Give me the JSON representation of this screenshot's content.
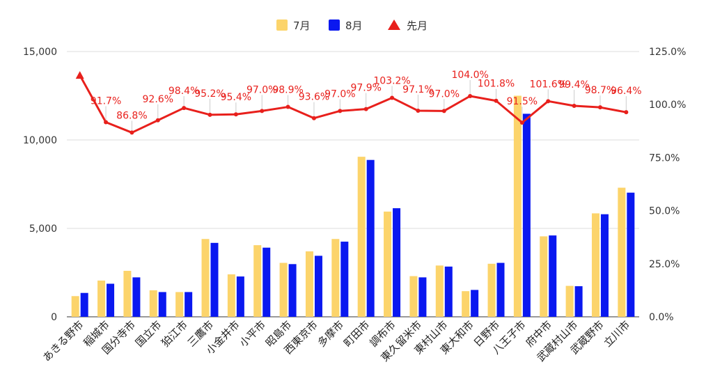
{
  "chart_data": {
    "type": "bar",
    "categories": [
      "あきる野市",
      "稲城市",
      "国分寺市",
      "国立市",
      "狛江市",
      "三鷹市",
      "小金井市",
      "小平市",
      "昭島市",
      "西東京市",
      "多摩市",
      "町田市",
      "調布市",
      "東久留米市",
      "東村山市",
      "東大和市",
      "日野市",
      "八王子市",
      "府中市",
      "武蔵村山市",
      "武蔵野市",
      "立川市"
    ],
    "series": [
      {
        "name": "7月",
        "type": "bar",
        "axis": "left",
        "color": "#fcd46b",
        "values": [
          1170,
          2050,
          2600,
          1500,
          1400,
          4400,
          2400,
          4050,
          3050,
          3700,
          4400,
          9050,
          5950,
          2300,
          2900,
          1450,
          3000,
          12500,
          4550,
          1750,
          5850,
          7300
        ]
      },
      {
        "name": "8月",
        "type": "bar",
        "axis": "left",
        "color": "#0a18f0",
        "values": [
          1350,
          1870,
          2230,
          1400,
          1400,
          4180,
          2280,
          3910,
          2980,
          3450,
          4250,
          8870,
          6140,
          2230,
          2840,
          1520,
          3050,
          11480,
          4600,
          1730,
          5800,
          7020
        ]
      },
      {
        "name": "先月",
        "type": "line",
        "axis": "right",
        "color": "#e8201c",
        "values": [
          113.8,
          91.7,
          86.8,
          92.6,
          98.4,
          95.2,
          95.4,
          97.0,
          98.9,
          93.6,
          97.0,
          97.9,
          103.2,
          97.1,
          97.0,
          104.0,
          101.8,
          91.5,
          101.6,
          99.4,
          98.7,
          96.4
        ],
        "labels": [
          "",
          "91.7%",
          "86.8%",
          "92.6%",
          "98.4%",
          "95.2%",
          "95.4%",
          "97.0%",
          "98.9%",
          "93.6%",
          "97.0%",
          "97.9%",
          "103.2%",
          "97.1%",
          "97.0%",
          "104.0%",
          "101.8%",
          "91.5%",
          "101.6%",
          "99.4%",
          "98.7%",
          "96.4%"
        ]
      }
    ],
    "y_left": {
      "ylim": [
        0,
        15000
      ],
      "ticks": [
        "0",
        "5,000",
        "10,000",
        "15,000"
      ],
      "tick_values": [
        0,
        5000,
        10000,
        15000
      ]
    },
    "y_right": {
      "ylim": [
        0,
        125
      ],
      "ticks": [
        "0.0%",
        "25.0%",
        "50.0%",
        "75.0%",
        "100.0%",
        "125.0%"
      ],
      "tick_values": [
        0,
        25,
        50,
        75,
        100,
        125
      ]
    },
    "legend": "top-center",
    "grid": "horizontal"
  }
}
